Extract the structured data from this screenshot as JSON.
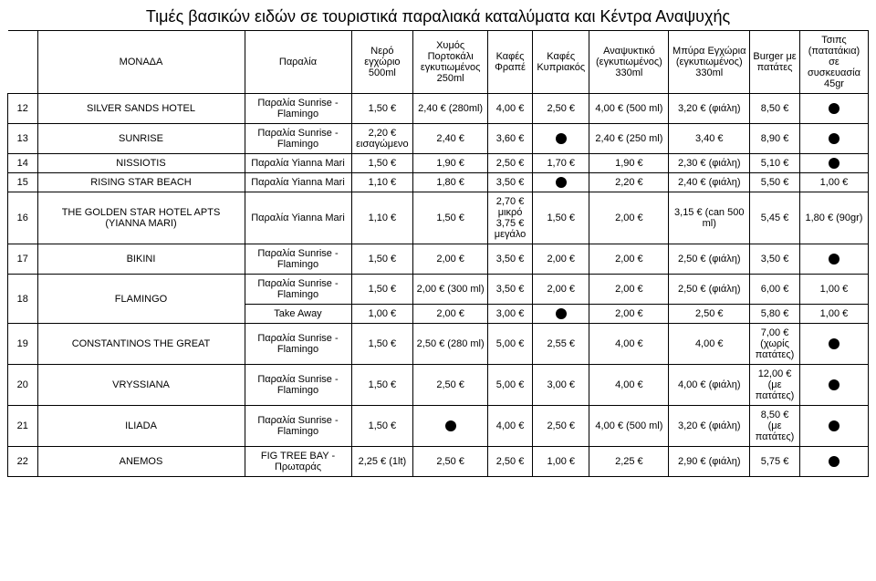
{
  "title": "Τιμές βασικών ειδών σε τουριστικά παραλιακά καταλύματα και Κέντρα Αναψυχής",
  "headers": {
    "num": "",
    "unit": "ΜΟΝΑΔΑ",
    "beach": "Παραλία",
    "water": "Νερό εγχώριο 500ml",
    "juice": "Χυμός Πορτοκάλι εγκυτιωμένος 250ml",
    "frappe": "Καφές Φραπέ",
    "cyprus": "Καφές Κυπριακός",
    "soda": "Αναψυκτικό (εγκυτιωμένος) 330ml",
    "beer": "Μπύρα Εγχώρια (εγκυτιωμένος) 330ml",
    "burger": "Burger με πατάτες",
    "chips": "Τσιπς (πατατάκια) σε συσκευασία 45gr"
  },
  "rows": [
    {
      "num": "12",
      "unit": "SILVER SANDS HOTEL",
      "beach": "Παραλία Sunrise - Flamingo",
      "water": "1,50 €",
      "juice": "2,40 € (280ml)",
      "frappe": "4,00 €",
      "cyprus": "2,50 €",
      "soda": "4,00 € (500 ml)",
      "beer": "3,20 € (φιάλη)",
      "burger": "8,50 €",
      "chips": "dot"
    },
    {
      "num": "13",
      "unit": "SUNRISE",
      "beach": "Παραλία Sunrise - Flamingo",
      "water": "2,20 € εισαγώμενο",
      "juice": "2,40 €",
      "frappe": "3,60 €",
      "cyprus": "dot",
      "soda": "2,40 € (250 ml)",
      "beer": "3,40 €",
      "burger": "8,90 €",
      "chips": "dot"
    },
    {
      "num": "14",
      "unit": "NISSIOTIS",
      "beach": "Παραλία Yianna Mari",
      "water": "1,50 €",
      "juice": "1,90 €",
      "frappe": "2,50 €",
      "cyprus": "1,70 €",
      "soda": "1,90 €",
      "beer": "2,30 € (φιάλη)",
      "burger": "5,10 €",
      "chips": "dot"
    },
    {
      "num": "15",
      "unit": "RISING STAR BEACH",
      "beach": "Παραλία Yianna Mari",
      "water": "1,10 €",
      "juice": "1,80 €",
      "frappe": "3,50 €",
      "cyprus": "dot",
      "soda": "2,20 €",
      "beer": "2,40 € (φιάλη)",
      "burger": "5,50 €",
      "chips": "1,00 €"
    },
    {
      "num": "16",
      "unit": "THE GOLDEN STAR HOTEL APTS (YIANNA MARI)",
      "beach": "Παραλία Yianna Mari",
      "water": "1,10 €",
      "juice": "1,50 €",
      "frappe": "2,70 € μικρό 3,75 € μεγάλο",
      "cyprus": "1,50 €",
      "soda": "2,00 €",
      "beer": "3,15 € (can 500 ml)",
      "burger": "5,45 €",
      "chips": "1,80 € (90gr)"
    },
    {
      "num": "17",
      "unit": "BIKINI",
      "beach": "Παραλία Sunrise - Flamingo",
      "water": "1,50 €",
      "juice": "2,00 €",
      "frappe": "3,50 €",
      "cyprus": "2,00 €",
      "soda": "2,00 €",
      "beer": "2,50 € (φιάλη)",
      "burger": "3,50 €",
      "chips": "dot"
    },
    {
      "num": "18",
      "unit": "FLAMINGO",
      "rowspan": 2,
      "sub": [
        {
          "beach": "Παραλία Sunrise - Flamingo",
          "water": "1,50 €",
          "juice": "2,00 € (300 ml)",
          "frappe": "3,50 €",
          "cyprus": "2,00 €",
          "soda": "2,00 €",
          "beer": "2,50 € (φιάλη)",
          "burger": "6,00 €",
          "chips": "1,00 €"
        },
        {
          "beach": "Take Away",
          "water": "1,00 €",
          "juice": "2,00 €",
          "frappe": "3,00 €",
          "cyprus": "dot",
          "soda": "2,00 €",
          "beer": "2,50 €",
          "burger": "5,80 €",
          "chips": "1,00 €"
        }
      ]
    },
    {
      "num": "19",
      "unit": "CONSTANTINOS THE GREAT",
      "beach": "Παραλία Sunrise - Flamingo",
      "water": "1,50 €",
      "juice": "2,50 € (280 ml)",
      "frappe": "5,00 €",
      "cyprus": "2,55 €",
      "soda": "4,00 €",
      "beer": "4,00 €",
      "burger": "7,00 € (χωρίς πατάτες)",
      "chips": "dot"
    },
    {
      "num": "20",
      "unit": "VRYSSIANA",
      "beach": "Παραλία Sunrise - Flamingo",
      "water": "1,50 €",
      "juice": "2,50 €",
      "frappe": "5,00 €",
      "cyprus": "3,00 €",
      "soda": "4,00 €",
      "beer": "4,00 € (φιάλη)",
      "burger": "12,00 € (με πατάτες)",
      "chips": "dot"
    },
    {
      "num": "21",
      "unit": "ILIADA",
      "beach": "Παραλία Sunrise - Flamingo",
      "water": "1,50 €",
      "juice": "dot",
      "frappe": "4,00 €",
      "cyprus": "2,50 €",
      "soda": "4,00 € (500 ml)",
      "beer": "3,20 € (φιάλη)",
      "burger": "8,50 € (με πατάτες)",
      "chips": "dot"
    },
    {
      "num": "22",
      "unit": "ANEMOS",
      "beach": "FIG TREE BAY - Πρωταράς",
      "water": "2,25 € (1lt)",
      "juice": "2,50 €",
      "frappe": "2,50 €",
      "cyprus": "1,00 €",
      "soda": "2,25 €",
      "beer": "2,90 € (φιάλη)",
      "burger": "5,75 €",
      "chips": "dot"
    }
  ],
  "style": {
    "title_color": "#000000",
    "border_color": "#000000",
    "dot_color": "#000000",
    "font_size_body": 11,
    "font_size_title": 18
  }
}
